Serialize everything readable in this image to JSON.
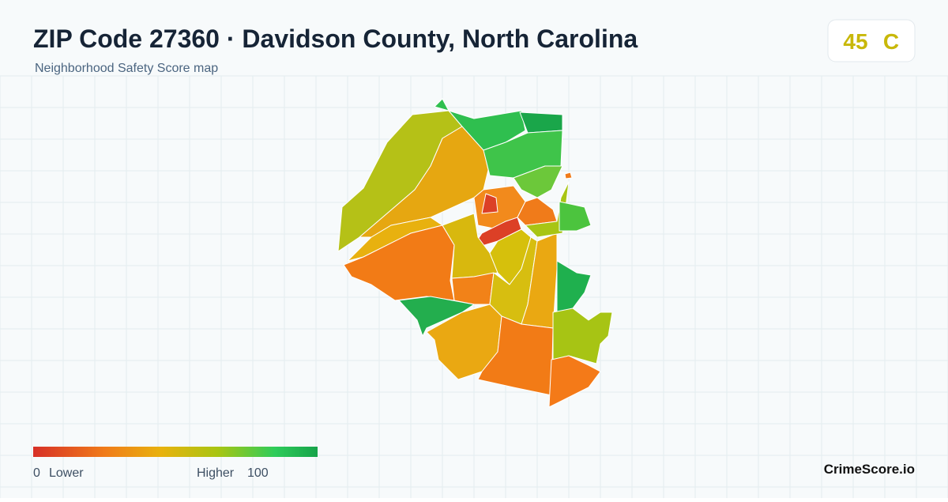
{
  "header": {
    "title": "ZIP Code 27360 · Davidson County, North Carolina",
    "subtitle": "Neighborhood Safety Score map"
  },
  "badge": {
    "score": "45",
    "grade": "C"
  },
  "legend": {
    "min": "0",
    "min_label": "Lower",
    "max_label": "Higher",
    "max": "100"
  },
  "brand": "CrimeScore.io"
}
